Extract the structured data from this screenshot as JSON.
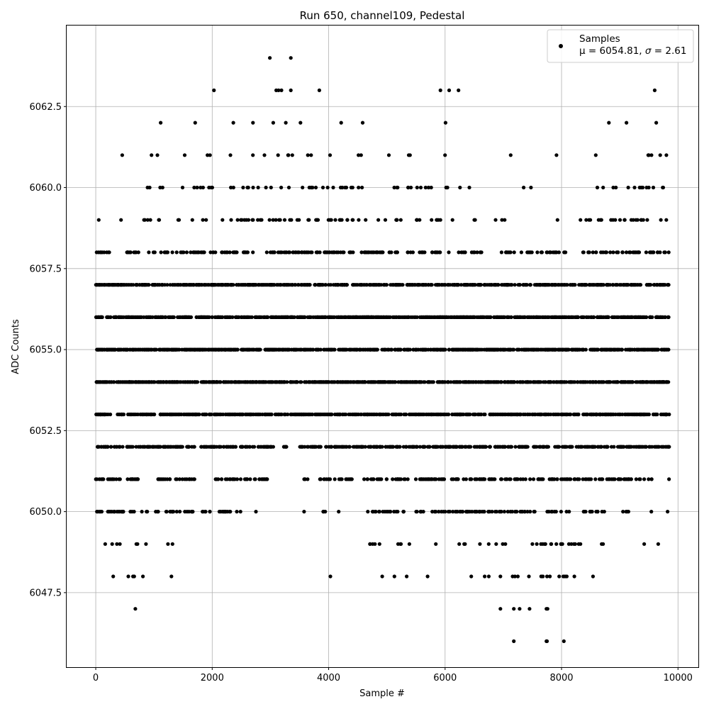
{
  "chart_data": {
    "type": "scatter",
    "title": "Run 650, channel109, Pedestal",
    "xlabel": "Sample #",
    "ylabel": "ADC Counts",
    "xlim": [
      -500,
      10350
    ],
    "ylim": [
      6045.2,
      6065.0
    ],
    "x_ticks": [
      0,
      2000,
      4000,
      6000,
      8000,
      10000
    ],
    "x_tick_labels": [
      "0",
      "2000",
      "4000",
      "6000",
      "8000",
      "10000"
    ],
    "y_ticks": [
      6047.5,
      6050.0,
      6052.5,
      6055.0,
      6057.5,
      6060.0,
      6062.5
    ],
    "y_tick_labels": [
      "6047.5",
      "6050.0",
      "6052.5",
      "6055.0",
      "6057.5",
      "6060.0",
      "6062.5"
    ],
    "grid": true,
    "legend_position": "top-right",
    "legend": {
      "series_name": "Samples",
      "stats_prefix": "μ = 6054.81, ",
      "stats_sigma_symbol": "σ",
      "stats_suffix": " = 2.61"
    },
    "color": "#000000",
    "x_max_sample": 9850,
    "levels": [
      {
        "y": 6064,
        "density": 0.0,
        "points": [
          2990,
          3350
        ]
      },
      {
        "y": 6063,
        "density": 0.0,
        "points": [
          2030,
          3100,
          3140,
          3190,
          3350,
          3840,
          5920,
          6070,
          6230,
          9600
        ]
      },
      {
        "y": 6062,
        "density": 0.035,
        "ranges": [
          [
            950,
            1150
          ],
          [
            1670,
            2000
          ],
          [
            2300,
            2560
          ],
          [
            2600,
            2900
          ],
          [
            2950,
            3950
          ],
          [
            4000,
            4300
          ],
          [
            4550,
            4600
          ],
          [
            5900,
            6150
          ],
          [
            8800,
            8900
          ],
          [
            9000,
            9200
          ],
          [
            9620,
            9700
          ]
        ]
      },
      {
        "y": 6061,
        "density": 0.06,
        "ranges": [
          [
            450,
            520
          ],
          [
            900,
            1200
          ],
          [
            1450,
            2000
          ],
          [
            2150,
            3850
          ],
          [
            3980,
            4650
          ],
          [
            5000,
            5100
          ],
          [
            5350,
            5700
          ],
          [
            5900,
            6100
          ],
          [
            7100,
            7150
          ],
          [
            7900,
            7950
          ],
          [
            8550,
            8600
          ],
          [
            8800,
            9850
          ]
        ]
      },
      {
        "y": 6060,
        "density": 0.14,
        "ranges": [
          [
            850,
            1200
          ],
          [
            1450,
            2150
          ],
          [
            2150,
            4600
          ],
          [
            4950,
            5500
          ],
          [
            5500,
            6200
          ],
          [
            6250,
            6450
          ],
          [
            7300,
            7350
          ],
          [
            7450,
            7500
          ],
          [
            8600,
            8750
          ],
          [
            8800,
            9850
          ]
        ]
      },
      {
        "y": 6059,
        "density": 0.18,
        "ranges": [
          [
            40,
            60
          ],
          [
            380,
            450
          ],
          [
            800,
            1200
          ],
          [
            1400,
            1550
          ],
          [
            1650,
            4650
          ],
          [
            4850,
            5000
          ],
          [
            5100,
            5400
          ],
          [
            5500,
            6150
          ],
          [
            6500,
            6600
          ],
          [
            6850,
            6900
          ],
          [
            6950,
            7050
          ],
          [
            7900,
            7950
          ],
          [
            8300,
            9850
          ]
        ]
      },
      {
        "y": 6058,
        "density": 0.35,
        "ranges": [
          [
            0,
            300
          ],
          [
            500,
            6650
          ],
          [
            6900,
            7200
          ],
          [
            7300,
            8100
          ],
          [
            8300,
            9850
          ]
        ]
      },
      {
        "y": 6057,
        "density": 0.9,
        "ranges": [
          [
            0,
            7200
          ],
          [
            7250,
            8250
          ],
          [
            8300,
            9850
          ]
        ]
      },
      {
        "y": 6056,
        "density": 1.0,
        "ranges": [
          [
            0,
            9850
          ]
        ]
      },
      {
        "y": 6055,
        "density": 1.0,
        "ranges": [
          [
            0,
            9850
          ]
        ]
      },
      {
        "y": 6054,
        "density": 1.0,
        "ranges": [
          [
            0,
            9850
          ]
        ]
      },
      {
        "y": 6053,
        "density": 0.9,
        "ranges": [
          [
            0,
            2900
          ],
          [
            2900,
            3300
          ],
          [
            3350,
            9850
          ]
        ]
      },
      {
        "y": 6052,
        "density": 0.7,
        "ranges": [
          [
            0,
            1700
          ],
          [
            1800,
            2500
          ],
          [
            2500,
            3050
          ],
          [
            3200,
            3300
          ],
          [
            3500,
            3900
          ],
          [
            3950,
            4600
          ],
          [
            4600,
            5750
          ],
          [
            5750,
            9850
          ]
        ]
      },
      {
        "y": 6051,
        "density": 0.45,
        "ranges": [
          [
            0,
            800
          ],
          [
            1050,
            1700
          ],
          [
            2050,
            2400
          ],
          [
            2400,
            2950
          ],
          [
            3550,
            3650
          ],
          [
            3850,
            4400
          ],
          [
            4600,
            6000
          ],
          [
            6100,
            9550
          ],
          [
            9830,
            9850
          ]
        ]
      },
      {
        "y": 6050,
        "density": 0.35,
        "ranges": [
          [
            0,
            900
          ],
          [
            1000,
            1700
          ],
          [
            1800,
            2000
          ],
          [
            2100,
            2550
          ],
          [
            2750,
            2800
          ],
          [
            3550,
            3600
          ],
          [
            3850,
            3950
          ],
          [
            4150,
            4200
          ],
          [
            4650,
            5300
          ],
          [
            5500,
            5700
          ],
          [
            5750,
            6200
          ],
          [
            6200,
            8150
          ],
          [
            8350,
            8750
          ],
          [
            9050,
            9200
          ],
          [
            9500,
            9550
          ],
          [
            9800,
            9850
          ]
        ]
      },
      {
        "y": 6049,
        "density": 0.15,
        "ranges": [
          [
            80,
            170
          ],
          [
            250,
            450
          ],
          [
            600,
            750
          ],
          [
            850,
            950
          ],
          [
            1200,
            1350
          ],
          [
            4700,
            5400
          ],
          [
            5800,
            5850
          ],
          [
            6150,
            6350
          ],
          [
            6550,
            8350
          ],
          [
            8650,
            8800
          ],
          [
            9350,
            9450
          ],
          [
            9650,
            9700
          ]
        ]
      },
      {
        "y": 6048,
        "density": 0.0,
        "points": [
          300,
          560,
          640,
          660,
          810,
          1300,
          4030,
          4920,
          5130,
          5340,
          5700,
          6450,
          6680,
          6750,
          6950,
          7160,
          7200,
          7250,
          7440,
          7650,
          7680,
          7750,
          7800,
          7960,
          8030,
          8060,
          8090,
          8220,
          8540
        ]
      },
      {
        "y": 6047,
        "density": 0.0,
        "points": [
          680,
          6950,
          7180,
          7280,
          7450,
          7740,
          7760
        ]
      },
      {
        "y": 6046,
        "density": 0.0,
        "points": [
          7180,
          7740,
          7750,
          8040
        ]
      }
    ]
  }
}
